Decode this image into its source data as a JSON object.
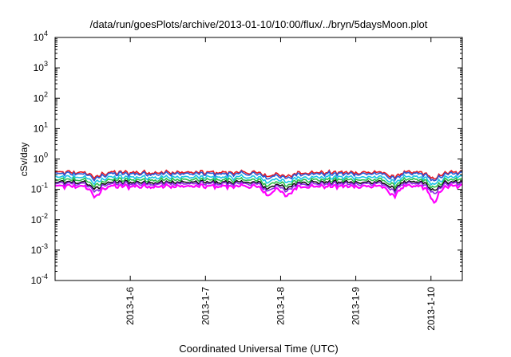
{
  "chart_data": {
    "type": "line",
    "title": "/data/run/goesPlots/archive/2013-01-10/10:00/flux/../bryn/5daysMoon.plot",
    "xlabel": "Coordinated Universal Time (UTC)",
    "ylabel": "cSv/day",
    "yscale": "log",
    "ylim": [
      0.0001,
      10000
    ],
    "xlim": [
      "2013-01-05T00:00",
      "2013-01-10T10:00"
    ],
    "x_ticks": [
      {
        "date": "2013-01-06T00:00",
        "label": "2013-1-6"
      },
      {
        "date": "2013-01-07T00:00",
        "label": "2013-1-7"
      },
      {
        "date": "2013-01-08T00:00",
        "label": "2013-1-8"
      },
      {
        "date": "2013-01-09T00:00",
        "label": "2013-1-9"
      },
      {
        "date": "2013-01-10T00:00",
        "label": "2013-1-10"
      }
    ],
    "y_ticks": [
      {
        "value": 0.0001,
        "base": "10",
        "exp": "-4"
      },
      {
        "value": 0.001,
        "base": "10",
        "exp": "-3"
      },
      {
        "value": 0.01,
        "base": "10",
        "exp": "-2"
      },
      {
        "value": 0.1,
        "base": "10",
        "exp": "-1"
      },
      {
        "value": 1,
        "base": "10",
        "exp": "0"
      },
      {
        "value": 10,
        "base": "10",
        "exp": "1"
      },
      {
        "value": 100,
        "base": "10",
        "exp": "2"
      },
      {
        "value": 1000,
        "base": "10",
        "exp": "3"
      },
      {
        "value": 10000,
        "base": "10",
        "exp": "4"
      }
    ],
    "grid": false,
    "legend": "none",
    "series": [
      {
        "color": "#e8151f",
        "base": 0.4,
        "dips": [
          [
            "2013-01-05T13:00",
            0.7
          ],
          [
            "2013-01-07T20:00",
            0.75
          ],
          [
            "2013-01-08T02:00",
            0.7
          ],
          [
            "2013-01-09T12:00",
            0.72
          ],
          [
            "2013-01-10T01:00",
            0.6
          ]
        ]
      },
      {
        "color": "#2a5bd7",
        "base": 0.36,
        "dips": [
          [
            "2013-01-05T13:00",
            0.68
          ],
          [
            "2013-01-07T20:00",
            0.72
          ],
          [
            "2013-01-08T02:00",
            0.68
          ],
          [
            "2013-01-09T12:00",
            0.7
          ],
          [
            "2013-01-10T01:00",
            0.58
          ]
        ]
      },
      {
        "color": "#19c3e6",
        "base": 0.28,
        "dips": [
          [
            "2013-01-05T13:00",
            0.65
          ],
          [
            "2013-01-07T20:00",
            0.7
          ],
          [
            "2013-01-08T02:00",
            0.65
          ],
          [
            "2013-01-09T12:00",
            0.68
          ],
          [
            "2013-01-10T01:00",
            0.55
          ]
        ]
      },
      {
        "color": "#2bbf4a",
        "base": 0.23,
        "dips": [
          [
            "2013-01-05T13:00",
            0.62
          ],
          [
            "2013-01-07T20:00",
            0.65
          ],
          [
            "2013-01-08T02:00",
            0.62
          ],
          [
            "2013-01-09T12:00",
            0.65
          ],
          [
            "2013-01-10T01:00",
            0.52
          ]
        ]
      },
      {
        "color": "#111111",
        "base": 0.19,
        "dips": [
          [
            "2013-01-05T13:00",
            0.6
          ],
          [
            "2013-01-07T20:00",
            0.62
          ],
          [
            "2013-01-08T02:00",
            0.6
          ],
          [
            "2013-01-09T12:00",
            0.62
          ],
          [
            "2013-01-10T01:00",
            0.5
          ]
        ]
      },
      {
        "color": "#8a2be2",
        "base": 0.17,
        "dips": [
          [
            "2013-01-05T13:00",
            0.55
          ],
          [
            "2013-01-07T20:00",
            0.58
          ],
          [
            "2013-01-08T02:00",
            0.55
          ],
          [
            "2013-01-09T12:00",
            0.58
          ],
          [
            "2013-01-10T01:00",
            0.45
          ]
        ]
      },
      {
        "color": "#ff00ff",
        "base": 0.14,
        "dips": [
          [
            "2013-01-05T13:00",
            0.45
          ],
          [
            "2013-01-07T20:00",
            0.5
          ],
          [
            "2013-01-08T02:00",
            0.45
          ],
          [
            "2013-01-09T12:00",
            0.48
          ],
          [
            "2013-01-10T01:00",
            0.28
          ]
        ]
      }
    ]
  }
}
